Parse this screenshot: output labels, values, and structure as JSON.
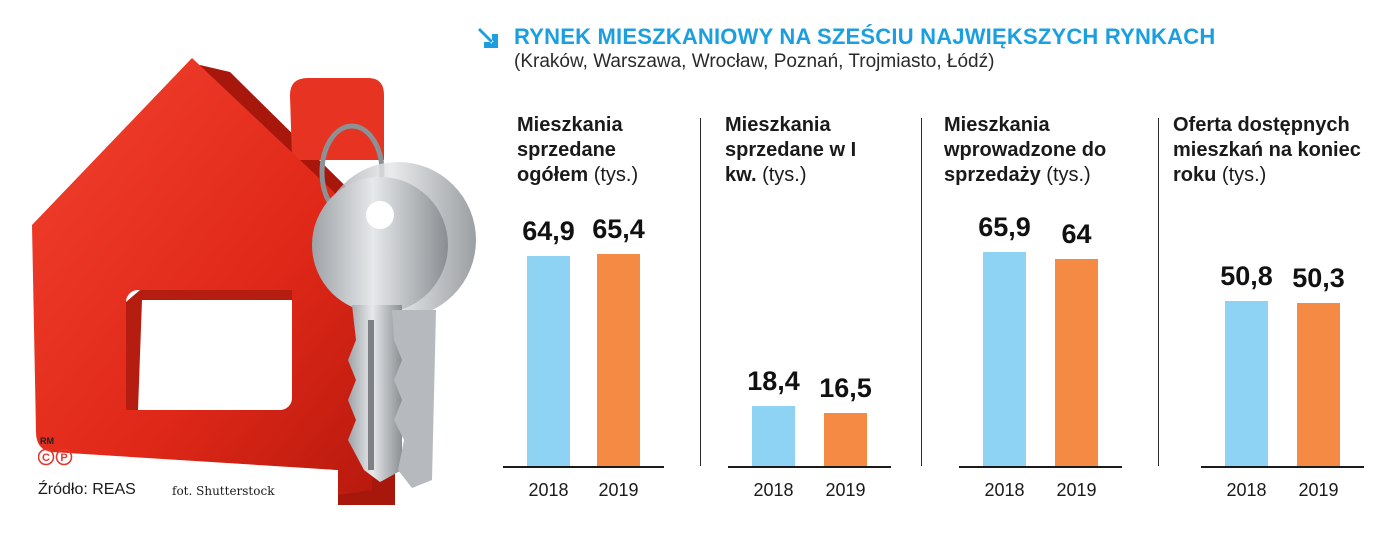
{
  "header": {
    "title": "RYNEK MIESZKANIOWY NA SZEŚCIU NAJWIĘKSZYCH RYNKACH",
    "subtitle": "(Kraków, Warszawa, Wrocław, Poznań, Trojmiasto, Łódź)"
  },
  "colors": {
    "title": "#1a9fe0",
    "bar_2018": "#8fd3f4",
    "bar_2019": "#f58a45",
    "house": "#e32b1c",
    "cp_badge": "#e03a2f"
  },
  "footer": {
    "source": "Źródło: REAS",
    "photo_credit": "fot. Shutterstock",
    "badge_rm": "RM",
    "badge_c": "C",
    "badge_p": "P"
  },
  "chart_data": [
    {
      "type": "bar",
      "title_bold": "Mieszkania sprzedane ogółem",
      "title_unit": "(tys.)",
      "categories": [
        "2018",
        "2019"
      ],
      "values": [
        64.9,
        65.4
      ],
      "value_labels": [
        "64,9",
        "65,4"
      ]
    },
    {
      "type": "bar",
      "title_bold": "Mieszkania sprzedane w I kw.",
      "title_unit": "(tys.)",
      "categories": [
        "2018",
        "2019"
      ],
      "values": [
        18.4,
        16.5
      ],
      "value_labels": [
        "18,4",
        "16,5"
      ]
    },
    {
      "type": "bar",
      "title_bold": "Mieszkania wprowadzone do sprzedaży",
      "title_unit": "(tys.)",
      "categories": [
        "2018",
        "2019"
      ],
      "values": [
        65.9,
        64
      ],
      "value_labels": [
        "65,9",
        "64"
      ]
    },
    {
      "type": "bar",
      "title_bold": "Oferta dostępnych mieszkań na koniec roku",
      "title_unit": "(tys.)",
      "categories": [
        "2018",
        "2019"
      ],
      "values": [
        50.8,
        50.3
      ],
      "value_labels": [
        "50,8",
        "50,3"
      ]
    }
  ]
}
